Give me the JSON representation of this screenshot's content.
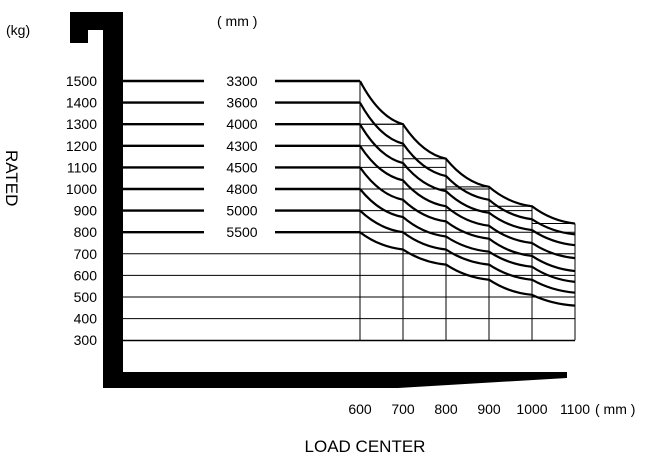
{
  "chart_data": {
    "type": "line",
    "title": "",
    "xlabel": "LOAD CENTER",
    "ylabel": "RATED",
    "x_unit": "( mm )",
    "y_unit": "(kg)",
    "series_unit": "( mm )",
    "x_ticks": [
      "600",
      "700",
      "800",
      "900",
      "1000",
      "1100"
    ],
    "y_ticks": [
      "1500",
      "1400",
      "1300",
      "1200",
      "1100",
      "1000",
      "900",
      "800",
      "700",
      "600",
      "500",
      "400",
      "300"
    ],
    "x_range": [
      600,
      1100
    ],
    "y_range": [
      300,
      1500
    ],
    "grid": true,
    "series": [
      {
        "name": "3300",
        "x": [
          600,
          700,
          800,
          900,
          1000,
          1100
        ],
        "values": [
          1500,
          1300,
          1140,
          1010,
          920,
          840
        ]
      },
      {
        "name": "3600",
        "x": [
          600,
          700,
          800,
          900,
          1000,
          1100
        ],
        "values": [
          1400,
          1210,
          1060,
          950,
          860,
          790
        ]
      },
      {
        "name": "4000",
        "x": [
          600,
          700,
          800,
          900,
          1000,
          1100
        ],
        "values": [
          1300,
          1120,
          990,
          890,
          810,
          740
        ]
      },
      {
        "name": "4300",
        "x": [
          600,
          700,
          800,
          900,
          1000,
          1100
        ],
        "values": [
          1200,
          1040,
          920,
          830,
          750,
          680
        ]
      },
      {
        "name": "4500",
        "x": [
          600,
          700,
          800,
          900,
          1000,
          1100
        ],
        "values": [
          1100,
          950,
          850,
          770,
          690,
          620
        ]
      },
      {
        "name": "4800",
        "x": [
          600,
          700,
          800,
          900,
          1000,
          1100
        ],
        "values": [
          1000,
          870,
          780,
          710,
          640,
          570
        ]
      },
      {
        "name": "5000",
        "x": [
          600,
          700,
          800,
          900,
          1000,
          1100
        ],
        "values": [
          900,
          800,
          720,
          650,
          580,
          520
        ]
      },
      {
        "name": "5500",
        "x": [
          600,
          700,
          800,
          900,
          1000,
          1100
        ],
        "values": [
          800,
          720,
          650,
          580,
          510,
          460
        ]
      }
    ]
  }
}
